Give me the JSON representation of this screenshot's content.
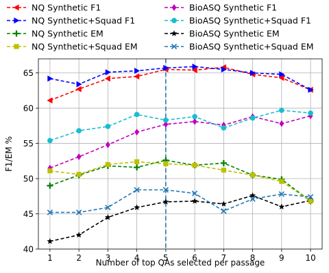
{
  "chart_data": {
    "type": "line",
    "title": "",
    "xlabel": "Number of top QAs selected per passage",
    "ylabel": "F1/EM %",
    "xlim": [
      0.6,
      10.4
    ],
    "ylim": [
      40,
      67
    ],
    "xticks": [
      1,
      2,
      3,
      4,
      5,
      6,
      7,
      8,
      9,
      10
    ],
    "yticks": [
      40,
      45,
      50,
      55,
      60,
      65
    ],
    "grid": true,
    "legend_position": "top (above plot), two columns",
    "vline": {
      "x": 5,
      "color": "#1f77b4",
      "style": "dashed"
    },
    "x": [
      1,
      2,
      3,
      4,
      5,
      6,
      7,
      8,
      9,
      10
    ],
    "series": [
      {
        "name": "NQ Synthetic F1",
        "color": "#ff0000",
        "marker": "triangle-left",
        "values": [
          61.1,
          62.7,
          64.2,
          64.5,
          65.5,
          65.4,
          65.8,
          64.8,
          64.3,
          62.6
        ]
      },
      {
        "name": "BioASQ Synthetic F1",
        "color": "#bf00bf",
        "marker": "diamond",
        "values": [
          51.5,
          53.1,
          54.8,
          56.6,
          57.7,
          58.1,
          57.6,
          58.8,
          57.8,
          58.9
        ]
      },
      {
        "name": "NQ Synthetic+Squad F1",
        "color": "#0000ff",
        "marker": "triangle-right",
        "values": [
          64.2,
          63.4,
          65.1,
          65.3,
          65.7,
          65.9,
          65.5,
          65.0,
          64.8,
          62.6
        ]
      },
      {
        "name": "BioASQ Synthetic+Squad F1",
        "color": "#17becf",
        "marker": "circle",
        "values": [
          55.4,
          56.8,
          57.4,
          59.1,
          58.3,
          58.8,
          57.2,
          58.6,
          59.7,
          59.3
        ]
      },
      {
        "name": "NQ Synthetic EM",
        "color": "#008000",
        "marker": "plus",
        "values": [
          49.0,
          50.5,
          51.8,
          51.6,
          52.6,
          51.9,
          52.2,
          50.5,
          49.9,
          46.8
        ]
      },
      {
        "name": "BioASQ Synthetic EM",
        "color": "#000000",
        "marker": "star",
        "values": [
          41.1,
          42.0,
          44.5,
          45.9,
          46.7,
          46.8,
          46.4,
          47.6,
          46.0,
          46.9
        ]
      },
      {
        "name": "NQ Synthetic+Squad EM",
        "color": "#bfbf00",
        "marker": "square",
        "values": [
          51.1,
          50.6,
          52.0,
          52.4,
          52.1,
          51.9,
          51.2,
          50.5,
          49.6,
          46.8
        ]
      },
      {
        "name": "BioASQ Synthetic+Squad EM",
        "color": "#1f77b4",
        "marker": "x",
        "values": [
          45.2,
          45.2,
          45.9,
          48.4,
          48.4,
          47.9,
          45.4,
          47.1,
          47.8,
          47.4
        ]
      }
    ]
  }
}
